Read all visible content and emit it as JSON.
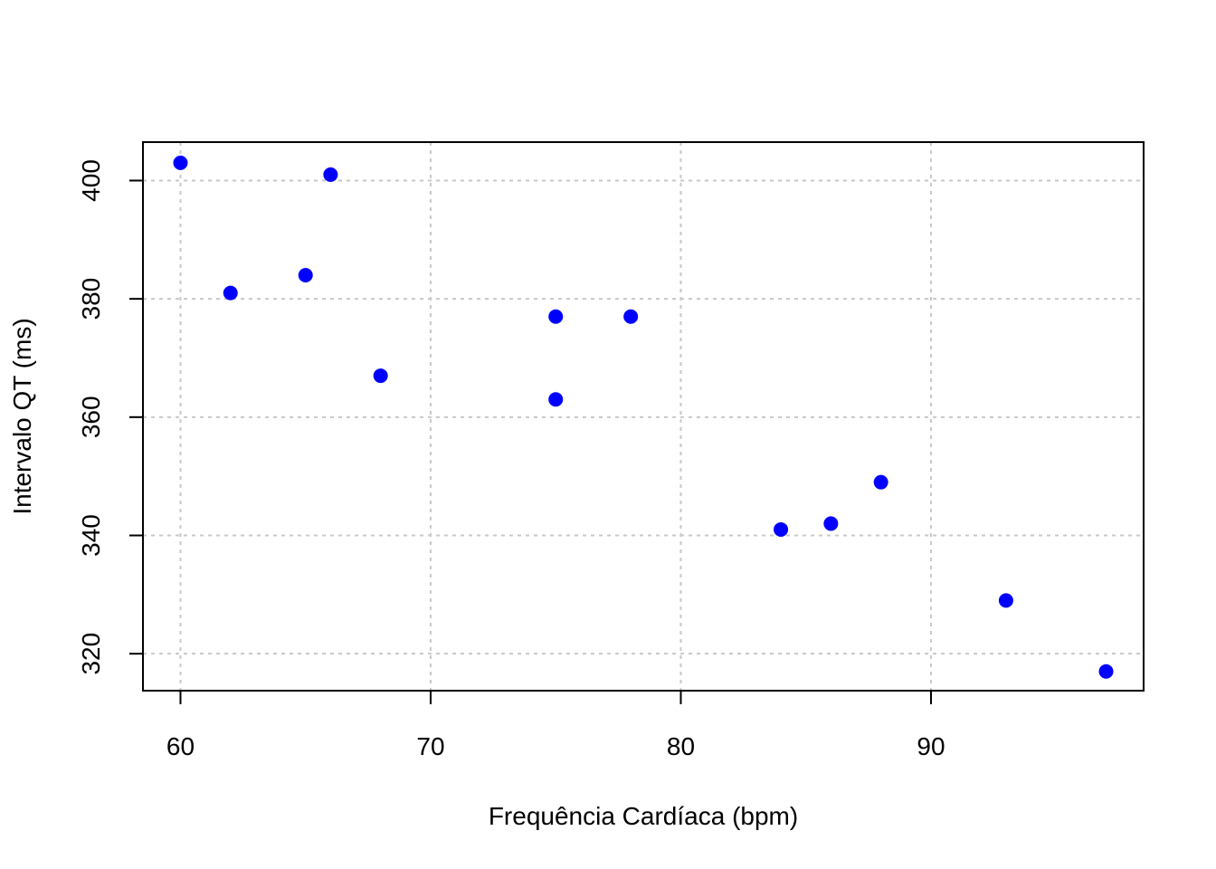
{
  "chart_data": {
    "type": "scatter",
    "title": "",
    "xlabel": "Frequência Cardíaca (bpm)",
    "ylabel": "Intervalo QT (ms)",
    "xlim": [
      58.5,
      98.5
    ],
    "ylim": [
      313.75,
      406.5
    ],
    "xticks": [
      60,
      70,
      80,
      90
    ],
    "yticks": [
      320,
      340,
      360,
      380,
      400
    ],
    "grid": true,
    "point_color": "#0000ff",
    "grid_color": "#c8c8c8",
    "points": [
      {
        "x": 60,
        "y": 403
      },
      {
        "x": 62,
        "y": 381
      },
      {
        "x": 65,
        "y": 384
      },
      {
        "x": 66,
        "y": 401
      },
      {
        "x": 68,
        "y": 367
      },
      {
        "x": 75,
        "y": 377
      },
      {
        "x": 75,
        "y": 363
      },
      {
        "x": 78,
        "y": 377
      },
      {
        "x": 84,
        "y": 341
      },
      {
        "x": 86,
        "y": 342
      },
      {
        "x": 88,
        "y": 349
      },
      {
        "x": 93,
        "y": 329
      },
      {
        "x": 97,
        "y": 317
      }
    ]
  }
}
